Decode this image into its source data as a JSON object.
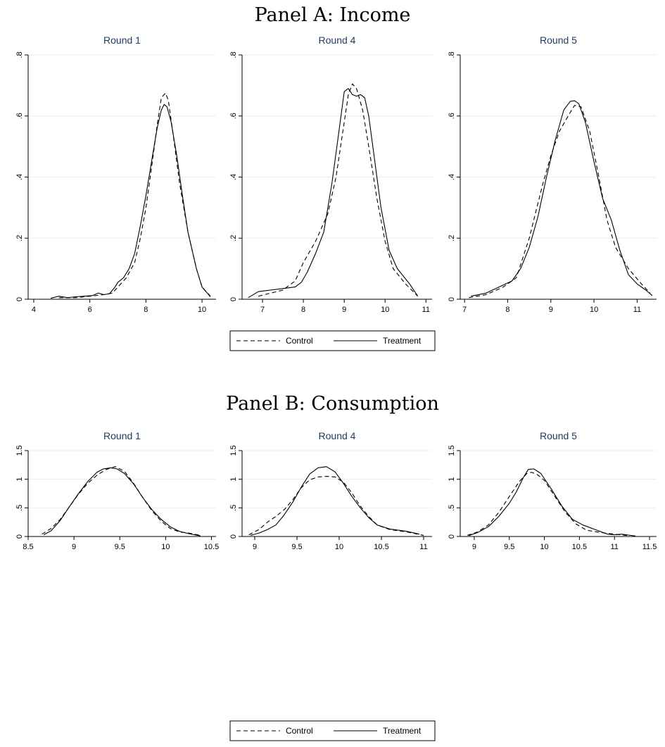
{
  "panels": [
    {
      "title": "Panel A: Income"
    },
    {
      "title": "Panel B: Consumption"
    }
  ],
  "legend": {
    "entries": [
      {
        "label": "Control",
        "style": "dashed"
      },
      {
        "label": "Treatment",
        "style": "solid"
      }
    ]
  },
  "colors": {
    "subtitle": "#1e3a5f",
    "line": "#000000",
    "grid": "#e8eef2",
    "axis": "#000000"
  },
  "chart_data": [
    {
      "type": "line",
      "panel": "Panel A: Income",
      "title": "Round 1",
      "xlim": [
        3.8,
        10.5
      ],
      "ylim": [
        0,
        0.8
      ],
      "xticks": [
        4,
        6,
        8,
        10
      ],
      "xtick_labels": [
        "4",
        "6",
        "8",
        "10"
      ],
      "yticks": [
        0,
        0.2,
        0.4,
        0.6,
        0.8
      ],
      "ytick_labels": [
        "0",
        ".2",
        ".4",
        ".6",
        ".8"
      ],
      "grid": true,
      "series": [
        {
          "name": "Control",
          "style": "dashed",
          "x": [
            4.9,
            5.5,
            6.0,
            6.5,
            6.8,
            7.0,
            7.3,
            7.6,
            7.8,
            8.0,
            8.2,
            8.4,
            8.55,
            8.7,
            8.8,
            9.0,
            9.2,
            9.5,
            9.8,
            10.0,
            10.3
          ],
          "y": [
            0.005,
            0.005,
            0.01,
            0.015,
            0.02,
            0.04,
            0.07,
            0.12,
            0.2,
            0.3,
            0.43,
            0.57,
            0.66,
            0.675,
            0.65,
            0.52,
            0.38,
            0.22,
            0.1,
            0.04,
            0.01
          ]
        },
        {
          "name": "Treatment",
          "style": "solid",
          "x": [
            4.6,
            4.9,
            5.2,
            5.5,
            5.8,
            6.1,
            6.3,
            6.5,
            6.7,
            6.9,
            7.0,
            7.2,
            7.4,
            7.6,
            7.8,
            8.0,
            8.2,
            8.4,
            8.55,
            8.65,
            8.75,
            8.9,
            9.1,
            9.3,
            9.5,
            9.8,
            10.0,
            10.3
          ],
          "y": [
            0.003,
            0.01,
            0.005,
            0.008,
            0.01,
            0.012,
            0.02,
            0.015,
            0.018,
            0.04,
            0.055,
            0.07,
            0.1,
            0.15,
            0.24,
            0.34,
            0.45,
            0.56,
            0.62,
            0.638,
            0.63,
            0.58,
            0.47,
            0.34,
            0.22,
            0.1,
            0.04,
            0.008
          ]
        }
      ]
    },
    {
      "type": "line",
      "panel": "Panel A: Income",
      "title": "Round 4",
      "xlim": [
        6.5,
        11.15
      ],
      "ylim": [
        0,
        0.8
      ],
      "xticks": [
        7,
        8,
        9,
        10,
        11
      ],
      "xtick_labels": [
        "7",
        "8",
        "9",
        "10",
        "11"
      ],
      "yticks": [
        0,
        0.2,
        0.4,
        0.6,
        0.8
      ],
      "ytick_labels": [
        "0",
        ".2",
        ".4",
        ".6",
        ".8"
      ],
      "grid": true,
      "series": [
        {
          "name": "Control",
          "style": "dashed",
          "x": [
            6.9,
            7.2,
            7.5,
            7.8,
            8.0,
            8.3,
            8.6,
            8.8,
            9.0,
            9.1,
            9.2,
            9.3,
            9.45,
            9.6,
            9.8,
            10.0,
            10.2,
            10.5,
            10.8
          ],
          "y": [
            0.01,
            0.02,
            0.03,
            0.06,
            0.12,
            0.19,
            0.28,
            0.4,
            0.58,
            0.67,
            0.705,
            0.69,
            0.62,
            0.5,
            0.33,
            0.19,
            0.1,
            0.05,
            0.01
          ]
        },
        {
          "name": "Treatment",
          "style": "solid",
          "x": [
            6.65,
            6.9,
            7.2,
            7.5,
            7.8,
            7.95,
            8.1,
            8.3,
            8.5,
            8.7,
            8.85,
            9.0,
            9.1,
            9.2,
            9.3,
            9.4,
            9.5,
            9.6,
            9.7,
            9.9,
            10.1,
            10.3,
            10.6,
            10.8
          ],
          "y": [
            0.005,
            0.025,
            0.03,
            0.035,
            0.04,
            0.055,
            0.09,
            0.15,
            0.22,
            0.38,
            0.53,
            0.68,
            0.69,
            0.67,
            0.665,
            0.67,
            0.66,
            0.6,
            0.5,
            0.3,
            0.16,
            0.1,
            0.05,
            0.01
          ]
        }
      ]
    },
    {
      "type": "line",
      "panel": "Panel A: Income",
      "title": "Round 5",
      "xlim": [
        6.9,
        11.45
      ],
      "ylim": [
        0,
        0.8
      ],
      "xticks": [
        7,
        8,
        9,
        10,
        11
      ],
      "xtick_labels": [
        "7",
        "8",
        "9",
        "10",
        "11"
      ],
      "yticks": [
        0,
        0.2,
        0.4,
        0.6,
        0.8
      ],
      "ytick_labels": [
        "0",
        ".2",
        ".4",
        ".6",
        ".8"
      ],
      "grid": true,
      "series": [
        {
          "name": "Control",
          "style": "dashed",
          "x": [
            7.1,
            7.5,
            7.9,
            8.2,
            8.5,
            8.8,
            9.0,
            9.2,
            9.4,
            9.55,
            9.7,
            9.9,
            10.1,
            10.3,
            10.5,
            10.8,
            11.1,
            11.3
          ],
          "y": [
            0.005,
            0.015,
            0.04,
            0.07,
            0.2,
            0.37,
            0.47,
            0.55,
            0.6,
            0.635,
            0.63,
            0.55,
            0.41,
            0.26,
            0.17,
            0.1,
            0.05,
            0.02
          ]
        },
        {
          "name": "Treatment",
          "style": "solid",
          "x": [
            7.15,
            7.5,
            7.8,
            8.1,
            8.3,
            8.5,
            8.7,
            8.9,
            9.1,
            9.3,
            9.45,
            9.55,
            9.65,
            9.8,
            10.0,
            10.2,
            10.4,
            10.6,
            10.8,
            11.0,
            11.2,
            11.35
          ],
          "y": [
            0.01,
            0.02,
            0.04,
            0.06,
            0.1,
            0.17,
            0.27,
            0.4,
            0.52,
            0.62,
            0.648,
            0.65,
            0.64,
            0.58,
            0.45,
            0.33,
            0.26,
            0.16,
            0.08,
            0.05,
            0.03,
            0.012
          ]
        }
      ]
    },
    {
      "type": "line",
      "panel": "Panel B: Consumption",
      "title": "Round 1",
      "xlim": [
        8.5,
        10.55
      ],
      "ylim": [
        0,
        1.5
      ],
      "xticks": [
        8.5,
        9,
        9.5,
        10,
        10.5
      ],
      "xtick_labels": [
        "8.5",
        "9",
        "9.5",
        "10",
        "10.5"
      ],
      "yticks": [
        0,
        0.5,
        1,
        1.5
      ],
      "ytick_labels": [
        "0",
        ".5",
        "1",
        "1.5"
      ],
      "grid": true,
      "series": [
        {
          "name": "Control",
          "style": "dashed",
          "x": [
            8.65,
            8.75,
            8.85,
            8.95,
            9.05,
            9.15,
            9.25,
            9.35,
            9.45,
            9.55,
            9.65,
            9.75,
            9.85,
            9.95,
            10.05,
            10.15,
            10.25,
            10.38
          ],
          "y": [
            0.04,
            0.14,
            0.3,
            0.52,
            0.74,
            0.93,
            1.07,
            1.17,
            1.22,
            1.14,
            0.93,
            0.68,
            0.45,
            0.27,
            0.14,
            0.08,
            0.06,
            0.02
          ]
        },
        {
          "name": "Treatment",
          "style": "solid",
          "x": [
            8.67,
            8.75,
            8.85,
            8.95,
            9.05,
            9.15,
            9.25,
            9.32,
            9.4,
            9.47,
            9.55,
            9.65,
            9.75,
            9.85,
            9.95,
            10.05,
            10.15,
            10.25,
            10.38
          ],
          "y": [
            0.03,
            0.1,
            0.28,
            0.52,
            0.75,
            0.96,
            1.12,
            1.18,
            1.2,
            1.18,
            1.1,
            0.92,
            0.68,
            0.47,
            0.3,
            0.17,
            0.09,
            0.05,
            0.01
          ]
        }
      ]
    },
    {
      "type": "line",
      "panel": "Panel B: Consumption",
      "title": "Round 4",
      "xlim": [
        8.85,
        11.1
      ],
      "ylim": [
        0,
        1.5
      ],
      "xticks": [
        9,
        9.5,
        10,
        10.5,
        11
      ],
      "xtick_labels": [
        "9",
        "9.5",
        "10",
        "10.5",
        "11"
      ],
      "yticks": [
        0,
        0.5,
        1,
        1.5
      ],
      "ytick_labels": [
        "0",
        ".5",
        "1",
        "1.5"
      ],
      "grid": true,
      "series": [
        {
          "name": "Control",
          "style": "dashed",
          "x": [
            8.93,
            9.05,
            9.15,
            9.25,
            9.35,
            9.45,
            9.55,
            9.65,
            9.75,
            9.85,
            9.95,
            10.05,
            10.15,
            10.25,
            10.35,
            10.45,
            10.6,
            10.8,
            11.0
          ],
          "y": [
            0.03,
            0.12,
            0.25,
            0.35,
            0.47,
            0.64,
            0.85,
            0.99,
            1.04,
            1.05,
            1.04,
            0.95,
            0.76,
            0.53,
            0.35,
            0.2,
            0.12,
            0.08,
            0.02
          ]
        },
        {
          "name": "Treatment",
          "style": "solid",
          "x": [
            8.95,
            9.05,
            9.15,
            9.25,
            9.35,
            9.45,
            9.55,
            9.65,
            9.75,
            9.85,
            9.95,
            10.05,
            10.15,
            10.25,
            10.35,
            10.45,
            10.6,
            10.8,
            10.95
          ],
          "y": [
            0.02,
            0.06,
            0.12,
            0.2,
            0.38,
            0.6,
            0.86,
            1.09,
            1.2,
            1.22,
            1.13,
            0.93,
            0.7,
            0.5,
            0.33,
            0.2,
            0.13,
            0.09,
            0.04
          ]
        }
      ]
    },
    {
      "type": "line",
      "panel": "Panel B: Consumption",
      "title": "Round 5",
      "xlim": [
        8.8,
        11.6
      ],
      "ylim": [
        0,
        1.5
      ],
      "xticks": [
        9,
        9.5,
        10,
        10.5,
        11,
        11.5
      ],
      "xtick_labels": [
        "9",
        "9.5",
        "10",
        "10.5",
        "11",
        "11.5"
      ],
      "yticks": [
        0,
        0.5,
        1,
        1.5
      ],
      "ytick_labels": [
        "0",
        ".5",
        "1",
        "1.5"
      ],
      "grid": true,
      "series": [
        {
          "name": "Control",
          "style": "dashed",
          "x": [
            8.9,
            9.05,
            9.2,
            9.35,
            9.5,
            9.65,
            9.75,
            9.82,
            9.9,
            10.0,
            10.15,
            10.3,
            10.45,
            10.6,
            10.8,
            11.0,
            11.2
          ],
          "y": [
            0.02,
            0.08,
            0.2,
            0.42,
            0.7,
            0.97,
            1.1,
            1.12,
            1.08,
            0.98,
            0.7,
            0.42,
            0.22,
            0.11,
            0.07,
            0.04,
            0.015
          ]
        },
        {
          "name": "Treatment",
          "style": "solid",
          "x": [
            8.92,
            9.05,
            9.2,
            9.35,
            9.5,
            9.6,
            9.7,
            9.77,
            9.85,
            9.95,
            10.1,
            10.25,
            10.4,
            10.55,
            10.75,
            10.9,
            11.0,
            11.1,
            11.2,
            11.3
          ],
          "y": [
            0.015,
            0.07,
            0.17,
            0.35,
            0.58,
            0.78,
            1.03,
            1.17,
            1.18,
            1.1,
            0.83,
            0.53,
            0.3,
            0.2,
            0.11,
            0.04,
            0.03,
            0.04,
            0.025,
            0.008
          ]
        }
      ]
    }
  ]
}
